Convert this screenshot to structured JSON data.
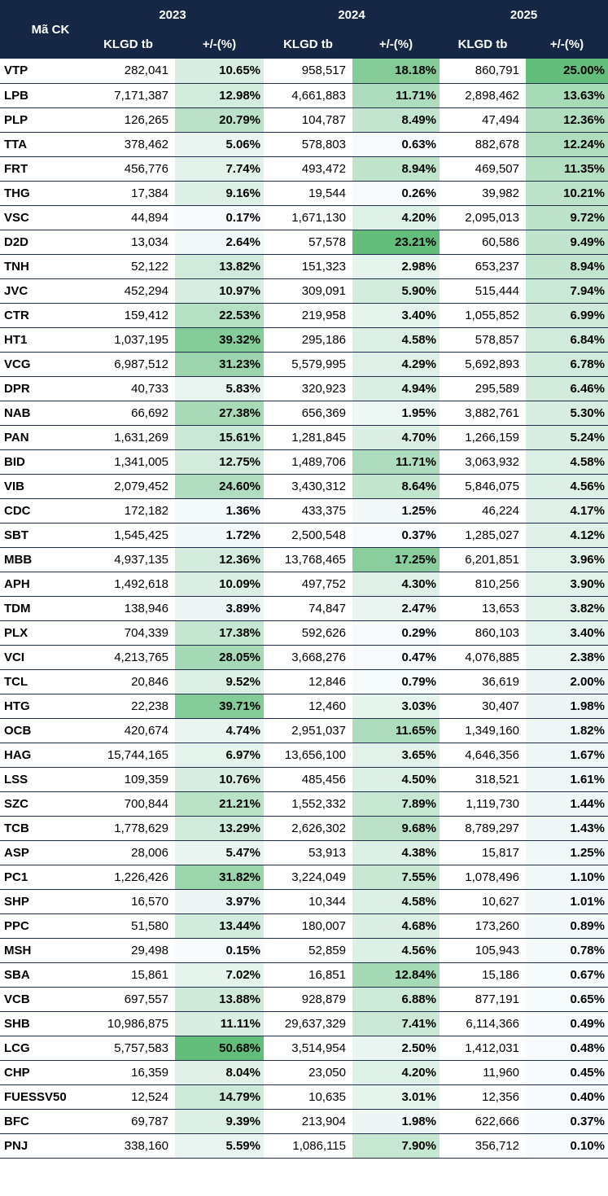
{
  "header": {
    "code_label": "Mã CK",
    "years": [
      "2023",
      "2024",
      "2025"
    ],
    "vol_label": "KLGD tb",
    "pct_label": "+/-(%)"
  },
  "rows": [
    {
      "code": "VTP",
      "v23": "282,041",
      "p23": "10.65%",
      "v24": "958,517",
      "p24": "18.18%",
      "v25": "860,791",
      "p25": "25.00%"
    },
    {
      "code": "LPB",
      "v23": "7,171,387",
      "p23": "12.98%",
      "v24": "4,661,883",
      "p24": "11.71%",
      "v25": "2,898,462",
      "p25": "13.63%"
    },
    {
      "code": "PLP",
      "v23": "126,265",
      "p23": "20.79%",
      "v24": "104,787",
      "p24": "8.49%",
      "v25": "47,494",
      "p25": "12.36%"
    },
    {
      "code": "TTA",
      "v23": "378,462",
      "p23": "5.06%",
      "v24": "578,803",
      "p24": "0.63%",
      "v25": "882,678",
      "p25": "12.24%"
    },
    {
      "code": "FRT",
      "v23": "456,776",
      "p23": "7.74%",
      "v24": "493,472",
      "p24": "8.94%",
      "v25": "469,507",
      "p25": "11.35%"
    },
    {
      "code": "THG",
      "v23": "17,384",
      "p23": "9.16%",
      "v24": "19,544",
      "p24": "0.26%",
      "v25": "39,982",
      "p25": "10.21%"
    },
    {
      "code": "VSC",
      "v23": "44,894",
      "p23": "0.17%",
      "v24": "1,671,130",
      "p24": "4.20%",
      "v25": "2,095,013",
      "p25": "9.72%"
    },
    {
      "code": "D2D",
      "v23": "13,034",
      "p23": "2.64%",
      "v24": "57,578",
      "p24": "23.21%",
      "v25": "60,586",
      "p25": "9.49%"
    },
    {
      "code": "TNH",
      "v23": "52,122",
      "p23": "13.82%",
      "v24": "151,323",
      "p24": "2.98%",
      "v25": "653,237",
      "p25": "8.94%"
    },
    {
      "code": "JVC",
      "v23": "452,294",
      "p23": "10.97%",
      "v24": "309,091",
      "p24": "5.90%",
      "v25": "515,444",
      "p25": "7.94%"
    },
    {
      "code": "CTR",
      "v23": "159,412",
      "p23": "22.53%",
      "v24": "219,958",
      "p24": "3.40%",
      "v25": "1,055,852",
      "p25": "6.99%"
    },
    {
      "code": "HT1",
      "v23": "1,037,195",
      "p23": "39.32%",
      "v24": "295,186",
      "p24": "4.58%",
      "v25": "578,857",
      "p25": "6.84%"
    },
    {
      "code": "VCG",
      "v23": "6,987,512",
      "p23": "31.23%",
      "v24": "5,579,995",
      "p24": "4.29%",
      "v25": "5,692,893",
      "p25": "6.78%"
    },
    {
      "code": "DPR",
      "v23": "40,733",
      "p23": "5.83%",
      "v24": "320,923",
      "p24": "4.94%",
      "v25": "295,589",
      "p25": "6.46%"
    },
    {
      "code": "NAB",
      "v23": "66,692",
      "p23": "27.38%",
      "v24": "656,369",
      "p24": "1.95%",
      "v25": "3,882,761",
      "p25": "5.30%"
    },
    {
      "code": "PAN",
      "v23": "1,631,269",
      "p23": "15.61%",
      "v24": "1,281,845",
      "p24": "4.70%",
      "v25": "1,266,159",
      "p25": "5.24%"
    },
    {
      "code": "BID",
      "v23": "1,341,005",
      "p23": "12.75%",
      "v24": "1,489,706",
      "p24": "11.71%",
      "v25": "3,063,932",
      "p25": "4.58%"
    },
    {
      "code": "VIB",
      "v23": "2,079,452",
      "p23": "24.60%",
      "v24": "3,430,312",
      "p24": "8.64%",
      "v25": "5,846,075",
      "p25": "4.56%"
    },
    {
      "code": "CDC",
      "v23": "172,182",
      "p23": "1.36%",
      "v24": "433,375",
      "p24": "1.25%",
      "v25": "46,224",
      "p25": "4.17%"
    },
    {
      "code": "SBT",
      "v23": "1,545,425",
      "p23": "1.72%",
      "v24": "2,500,548",
      "p24": "0.37%",
      "v25": "1,285,027",
      "p25": "4.12%"
    },
    {
      "code": "MBB",
      "v23": "4,937,135",
      "p23": "12.36%",
      "v24": "13,768,465",
      "p24": "17.25%",
      "v25": "6,201,851",
      "p25": "3.96%"
    },
    {
      "code": "APH",
      "v23": "1,492,618",
      "p23": "10.09%",
      "v24": "497,752",
      "p24": "4.30%",
      "v25": "810,256",
      "p25": "3.90%"
    },
    {
      "code": "TDM",
      "v23": "138,946",
      "p23": "3.89%",
      "v24": "74,847",
      "p24": "2.47%",
      "v25": "13,653",
      "p25": "3.82%"
    },
    {
      "code": "PLX",
      "v23": "704,339",
      "p23": "17.38%",
      "v24": "592,626",
      "p24": "0.29%",
      "v25": "860,103",
      "p25": "3.40%"
    },
    {
      "code": "VCI",
      "v23": "4,213,765",
      "p23": "28.05%",
      "v24": "3,668,276",
      "p24": "0.47%",
      "v25": "4,076,885",
      "p25": "2.38%"
    },
    {
      "code": "TCL",
      "v23": "20,846",
      "p23": "9.52%",
      "v24": "12,846",
      "p24": "0.79%",
      "v25": "36,619",
      "p25": "2.00%"
    },
    {
      "code": "HTG",
      "v23": "22,238",
      "p23": "39.71%",
      "v24": "12,460",
      "p24": "3.03%",
      "v25": "30,407",
      "p25": "1.98%"
    },
    {
      "code": "OCB",
      "v23": "420,674",
      "p23": "4.74%",
      "v24": "2,951,037",
      "p24": "11.65%",
      "v25": "1,349,160",
      "p25": "1.82%"
    },
    {
      "code": "HAG",
      "v23": "15,744,165",
      "p23": "6.97%",
      "v24": "13,656,100",
      "p24": "3.65%",
      "v25": "4,646,356",
      "p25": "1.67%"
    },
    {
      "code": "LSS",
      "v23": "109,359",
      "p23": "10.76%",
      "v24": "485,456",
      "p24": "4.50%",
      "v25": "318,521",
      "p25": "1.61%"
    },
    {
      "code": "SZC",
      "v23": "700,844",
      "p23": "21.21%",
      "v24": "1,552,332",
      "p24": "7.89%",
      "v25": "1,119,730",
      "p25": "1.44%"
    },
    {
      "code": "TCB",
      "v23": "1,778,629",
      "p23": "13.29%",
      "v24": "2,626,302",
      "p24": "9.68%",
      "v25": "8,789,297",
      "p25": "1.43%"
    },
    {
      "code": "ASP",
      "v23": "28,006",
      "p23": "5.47%",
      "v24": "53,913",
      "p24": "4.38%",
      "v25": "15,817",
      "p25": "1.25%"
    },
    {
      "code": "PC1",
      "v23": "1,226,426",
      "p23": "31.82%",
      "v24": "3,224,049",
      "p24": "7.55%",
      "v25": "1,078,496",
      "p25": "1.10%"
    },
    {
      "code": "SHP",
      "v23": "16,570",
      "p23": "3.97%",
      "v24": "10,344",
      "p24": "4.58%",
      "v25": "10,627",
      "p25": "1.01%"
    },
    {
      "code": "PPC",
      "v23": "51,580",
      "p23": "13.44%",
      "v24": "180,007",
      "p24": "4.68%",
      "v25": "173,260",
      "p25": "0.89%"
    },
    {
      "code": "MSH",
      "v23": "29,498",
      "p23": "0.15%",
      "v24": "52,859",
      "p24": "4.56%",
      "v25": "105,943",
      "p25": "0.78%"
    },
    {
      "code": "SBA",
      "v23": "15,861",
      "p23": "7.02%",
      "v24": "16,851",
      "p24": "12.84%",
      "v25": "15,186",
      "p25": "0.67%"
    },
    {
      "code": "VCB",
      "v23": "697,557",
      "p23": "13.88%",
      "v24": "928,879",
      "p24": "6.88%",
      "v25": "877,191",
      "p25": "0.65%"
    },
    {
      "code": "SHB",
      "v23": "10,986,875",
      "p23": "11.11%",
      "v24": "29,637,329",
      "p24": "7.41%",
      "v25": "6,114,366",
      "p25": "0.49%"
    },
    {
      "code": "LCG",
      "v23": "5,757,583",
      "p23": "50.68%",
      "v24": "3,514,954",
      "p24": "2.50%",
      "v25": "1,412,031",
      "p25": "0.48%"
    },
    {
      "code": "CHP",
      "v23": "16,359",
      "p23": "8.04%",
      "v24": "23,050",
      "p24": "4.20%",
      "v25": "11,960",
      "p25": "0.45%"
    },
    {
      "code": "FUESSV50",
      "v23": "12,524",
      "p23": "14.79%",
      "v24": "10,635",
      "p24": "3.01%",
      "v25": "12,356",
      "p25": "0.40%"
    },
    {
      "code": "BFC",
      "v23": "69,787",
      "p23": "9.39%",
      "v24": "213,904",
      "p24": "1.98%",
      "v25": "622,666",
      "p25": "0.37%"
    },
    {
      "code": "PNJ",
      "v23": "338,160",
      "p23": "5.59%",
      "v24": "1,086,115",
      "p24": "7.90%",
      "v25": "356,712",
      "p25": "0.10%"
    }
  ],
  "colors": {
    "header_bg": "#152744",
    "header_text": "#ffffff",
    "scale_low": "#f8fbfe",
    "scale_high": "#63be7b"
  }
}
